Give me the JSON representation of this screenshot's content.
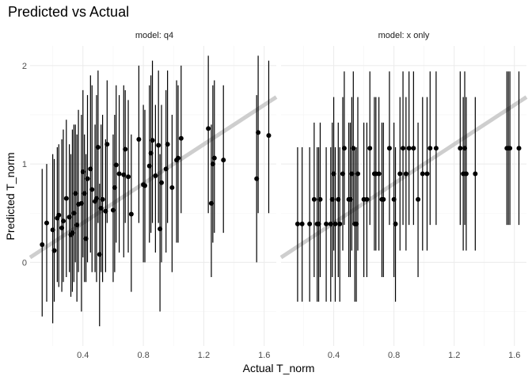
{
  "chart_data": {
    "type": "scatter",
    "title": "Predicted vs Actual",
    "xlabel": "Actual T_norm",
    "ylabel": "Predicted T_norm",
    "xlim": [
      0.05,
      1.68
    ],
    "ylim": [
      -0.85,
      2.2
    ],
    "xticks": [
      0.4,
      0.8,
      1.2,
      1.6
    ],
    "yticks": [
      0,
      1,
      2
    ],
    "grid": true,
    "reference_line": {
      "slope": 1,
      "intercept": 0
    },
    "panels": [
      {
        "name": "model: q4",
        "points": [
          {
            "x": 0.13,
            "y": 0.18,
            "lo": -0.55,
            "hi": 0.95
          },
          {
            "x": 0.16,
            "y": 0.4,
            "lo": -0.4,
            "hi": 1.0
          },
          {
            "x": 0.2,
            "y": 0.33,
            "lo": -0.62,
            "hi": 1.1
          },
          {
            "x": 0.21,
            "y": 0.12,
            "lo": -0.4,
            "hi": 1.05
          },
          {
            "x": 0.23,
            "y": 0.45,
            "lo": -0.2,
            "hi": 1.17
          },
          {
            "x": 0.24,
            "y": 0.48,
            "lo": -0.25,
            "hi": 1.2
          },
          {
            "x": 0.26,
            "y": 0.35,
            "lo": -0.3,
            "hi": 1.25
          },
          {
            "x": 0.27,
            "y": 0.42,
            "lo": -0.2,
            "hi": 1.35
          },
          {
            "x": 0.29,
            "y": 0.65,
            "lo": -0.15,
            "hi": 1.45
          },
          {
            "x": 0.31,
            "y": 0.46,
            "lo": -0.1,
            "hi": 1.2
          },
          {
            "x": 0.32,
            "y": 0.28,
            "lo": -0.35,
            "hi": 1.1
          },
          {
            "x": 0.33,
            "y": 0.3,
            "lo": -0.3,
            "hi": 1.35
          },
          {
            "x": 0.34,
            "y": 0.5,
            "lo": -0.2,
            "hi": 1.4
          },
          {
            "x": 0.35,
            "y": 0.7,
            "lo": 0.0,
            "hi": 1.4
          },
          {
            "x": 0.36,
            "y": 0.38,
            "lo": -0.4,
            "hi": 1.3
          },
          {
            "x": 0.37,
            "y": 0.59,
            "lo": -0.1,
            "hi": 1.55
          },
          {
            "x": 0.39,
            "y": 0.6,
            "lo": -0.5,
            "hi": 1.5
          },
          {
            "x": 0.4,
            "y": 0.92,
            "lo": 0.05,
            "hi": 1.75
          },
          {
            "x": 0.41,
            "y": 0.7,
            "lo": -0.2,
            "hi": 1.3
          },
          {
            "x": 0.42,
            "y": 0.24,
            "lo": -0.2,
            "hi": 1.1
          },
          {
            "x": 0.43,
            "y": 0.85,
            "lo": 0.0,
            "hi": 1.7
          },
          {
            "x": 0.45,
            "y": 0.95,
            "lo": 0.1,
            "hi": 1.9
          },
          {
            "x": 0.46,
            "y": 0.74,
            "lo": -0.1,
            "hi": 1.8
          },
          {
            "x": 0.48,
            "y": 0.62,
            "lo": -0.1,
            "hi": 1.4
          },
          {
            "x": 0.49,
            "y": 0.65,
            "lo": -0.2,
            "hi": 1.7
          },
          {
            "x": 0.5,
            "y": 1.17,
            "lo": 0.4,
            "hi": 1.95
          },
          {
            "x": 0.51,
            "y": 0.08,
            "lo": -0.65,
            "hi": 0.8
          },
          {
            "x": 0.52,
            "y": 0.55,
            "lo": -0.1,
            "hi": 1.4
          },
          {
            "x": 0.53,
            "y": 0.64,
            "lo": -0.2,
            "hi": 1.5
          },
          {
            "x": 0.55,
            "y": 0.52,
            "lo": -0.1,
            "hi": 1.25
          },
          {
            "x": 0.56,
            "y": 1.2,
            "lo": 0.4,
            "hi": 1.85
          },
          {
            "x": 0.6,
            "y": 0.53,
            "lo": -0.2,
            "hi": 1.3
          },
          {
            "x": 0.61,
            "y": 0.76,
            "lo": -0.1,
            "hi": 1.5
          },
          {
            "x": 0.62,
            "y": 0.99,
            "lo": 0.2,
            "hi": 1.8
          },
          {
            "x": 0.64,
            "y": 0.9,
            "lo": 0.1,
            "hi": 1.7
          },
          {
            "x": 0.67,
            "y": 0.89,
            "lo": 0.05,
            "hi": 1.8
          },
          {
            "x": 0.68,
            "y": 1.15,
            "lo": 0.4,
            "hi": 1.75
          },
          {
            "x": 0.7,
            "y": 0.87,
            "lo": 0.1,
            "hi": 1.65
          },
          {
            "x": 0.72,
            "y": 0.49,
            "lo": -0.3,
            "hi": 1.3
          },
          {
            "x": 0.77,
            "y": 1.25,
            "lo": 0.4,
            "hi": 2.0
          },
          {
            "x": 0.8,
            "y": 0.79,
            "lo": 0.0,
            "hi": 1.6
          },
          {
            "x": 0.81,
            "y": 0.78,
            "lo": 0.0,
            "hi": 1.55
          },
          {
            "x": 0.84,
            "y": 0.98,
            "lo": 0.2,
            "hi": 1.8
          },
          {
            "x": 0.85,
            "y": 1.11,
            "lo": 0.3,
            "hi": 1.9
          },
          {
            "x": 0.86,
            "y": 1.24,
            "lo": 0.4,
            "hi": 2.05
          },
          {
            "x": 0.88,
            "y": 0.88,
            "lo": 0.1,
            "hi": 1.6
          },
          {
            "x": 0.9,
            "y": 1.19,
            "lo": 0.4,
            "hi": 1.95
          },
          {
            "x": 0.91,
            "y": 0.34,
            "lo": -0.5,
            "hi": 1.1
          },
          {
            "x": 0.92,
            "y": 0.81,
            "lo": 0.0,
            "hi": 1.6
          },
          {
            "x": 0.95,
            "y": 0.95,
            "lo": 0.1,
            "hi": 1.75
          },
          {
            "x": 0.96,
            "y": 1.2,
            "lo": 0.4,
            "hi": 1.95
          },
          {
            "x": 0.99,
            "y": 0.76,
            "lo": -0.1,
            "hi": 1.5
          },
          {
            "x": 1.02,
            "y": 1.04,
            "lo": 0.2,
            "hi": 1.85
          },
          {
            "x": 1.03,
            "y": 1.06,
            "lo": 0.2,
            "hi": 1.8
          },
          {
            "x": 1.05,
            "y": 1.26,
            "lo": 0.5,
            "hi": 2.0
          },
          {
            "x": 1.23,
            "y": 1.36,
            "lo": 0.5,
            "hi": 2.1
          },
          {
            "x": 1.25,
            "y": 0.6,
            "lo": -0.15,
            "hi": 1.4
          },
          {
            "x": 1.26,
            "y": 1.0,
            "lo": 0.2,
            "hi": 1.8
          },
          {
            "x": 1.27,
            "y": 1.06,
            "lo": 0.3,
            "hi": 1.85
          },
          {
            "x": 1.33,
            "y": 1.04,
            "lo": 0.3,
            "hi": 1.8
          },
          {
            "x": 1.55,
            "y": 0.85,
            "lo": 0.0,
            "hi": 1.7
          },
          {
            "x": 1.56,
            "y": 1.32,
            "lo": 0.5,
            "hi": 2.1
          },
          {
            "x": 1.63,
            "y": 1.29,
            "lo": 0.5,
            "hi": 2.05
          }
        ]
      },
      {
        "name": "model: x only",
        "points": [
          {
            "x": 0.16,
            "y": 0.39,
            "lo": -0.4,
            "hi": 1.17
          },
          {
            "x": 0.19,
            "y": 0.39,
            "lo": -0.4,
            "hi": 1.17
          },
          {
            "x": 0.24,
            "y": 0.39,
            "lo": -0.4,
            "hi": 1.17
          },
          {
            "x": 0.27,
            "y": 0.64,
            "lo": -0.15,
            "hi": 1.42
          },
          {
            "x": 0.29,
            "y": 0.39,
            "lo": -0.4,
            "hi": 1.17
          },
          {
            "x": 0.3,
            "y": 0.39,
            "lo": -0.4,
            "hi": 1.17
          },
          {
            "x": 0.31,
            "y": 0.64,
            "lo": -0.15,
            "hi": 1.42
          },
          {
            "x": 0.35,
            "y": 0.39,
            "lo": -0.4,
            "hi": 1.17
          },
          {
            "x": 0.38,
            "y": 0.39,
            "lo": -0.4,
            "hi": 1.17
          },
          {
            "x": 0.39,
            "y": 0.64,
            "lo": -0.15,
            "hi": 1.42
          },
          {
            "x": 0.4,
            "y": 0.9,
            "lo": 0.12,
            "hi": 1.68
          },
          {
            "x": 0.41,
            "y": 0.39,
            "lo": -0.4,
            "hi": 1.17
          },
          {
            "x": 0.43,
            "y": 0.64,
            "lo": -0.15,
            "hi": 1.42
          },
          {
            "x": 0.44,
            "y": 0.39,
            "lo": -0.4,
            "hi": 1.17
          },
          {
            "x": 0.46,
            "y": 0.9,
            "lo": 0.12,
            "hi": 1.68
          },
          {
            "x": 0.47,
            "y": 1.16,
            "lo": 0.38,
            "hi": 1.94
          },
          {
            "x": 0.5,
            "y": 0.64,
            "lo": -0.15,
            "hi": 1.42
          },
          {
            "x": 0.51,
            "y": 0.64,
            "lo": -0.15,
            "hi": 1.42
          },
          {
            "x": 0.52,
            "y": 0.9,
            "lo": 0.12,
            "hi": 1.68
          },
          {
            "x": 0.53,
            "y": 1.16,
            "lo": 0.38,
            "hi": 1.94
          },
          {
            "x": 0.54,
            "y": 0.39,
            "lo": -0.4,
            "hi": 1.17
          },
          {
            "x": 0.55,
            "y": 0.39,
            "lo": -0.4,
            "hi": 1.17
          },
          {
            "x": 0.56,
            "y": 0.9,
            "lo": 0.12,
            "hi": 1.68
          },
          {
            "x": 0.6,
            "y": 0.64,
            "lo": -0.15,
            "hi": 1.42
          },
          {
            "x": 0.62,
            "y": 0.64,
            "lo": -0.15,
            "hi": 1.42
          },
          {
            "x": 0.64,
            "y": 1.16,
            "lo": 0.38,
            "hi": 1.94
          },
          {
            "x": 0.67,
            "y": 0.9,
            "lo": 0.12,
            "hi": 1.68
          },
          {
            "x": 0.68,
            "y": 0.9,
            "lo": 0.12,
            "hi": 1.68
          },
          {
            "x": 0.7,
            "y": 0.9,
            "lo": 0.12,
            "hi": 1.68
          },
          {
            "x": 0.72,
            "y": 0.64,
            "lo": -0.15,
            "hi": 1.42
          },
          {
            "x": 0.73,
            "y": 0.64,
            "lo": -0.15,
            "hi": 1.42
          },
          {
            "x": 0.77,
            "y": 1.16,
            "lo": 0.38,
            "hi": 1.94
          },
          {
            "x": 0.8,
            "y": 0.64,
            "lo": -0.15,
            "hi": 1.42
          },
          {
            "x": 0.81,
            "y": 0.39,
            "lo": -0.4,
            "hi": 1.17
          },
          {
            "x": 0.84,
            "y": 0.9,
            "lo": 0.12,
            "hi": 1.68
          },
          {
            "x": 0.86,
            "y": 1.16,
            "lo": 0.38,
            "hi": 1.94
          },
          {
            "x": 0.88,
            "y": 0.9,
            "lo": 0.12,
            "hi": 1.68
          },
          {
            "x": 0.9,
            "y": 1.16,
            "lo": 0.38,
            "hi": 1.94
          },
          {
            "x": 0.93,
            "y": 1.16,
            "lo": 0.38,
            "hi": 1.94
          },
          {
            "x": 0.96,
            "y": 0.64,
            "lo": -0.15,
            "hi": 1.42
          },
          {
            "x": 0.99,
            "y": 0.9,
            "lo": 0.12,
            "hi": 1.68
          },
          {
            "x": 1.02,
            "y": 0.9,
            "lo": 0.12,
            "hi": 1.68
          },
          {
            "x": 1.04,
            "y": 1.16,
            "lo": 0.38,
            "hi": 1.94
          },
          {
            "x": 1.08,
            "y": 1.16,
            "lo": 0.38,
            "hi": 1.94
          },
          {
            "x": 1.24,
            "y": 1.16,
            "lo": 0.38,
            "hi": 1.94
          },
          {
            "x": 1.26,
            "y": 0.9,
            "lo": 0.12,
            "hi": 1.68
          },
          {
            "x": 1.27,
            "y": 1.16,
            "lo": 0.38,
            "hi": 1.94
          },
          {
            "x": 1.28,
            "y": 0.9,
            "lo": 0.12,
            "hi": 1.68
          },
          {
            "x": 1.34,
            "y": 0.9,
            "lo": 0.12,
            "hi": 1.68
          },
          {
            "x": 1.55,
            "y": 1.16,
            "lo": 0.38,
            "hi": 1.94
          },
          {
            "x": 1.56,
            "y": 1.16,
            "lo": 0.38,
            "hi": 1.94
          },
          {
            "x": 1.57,
            "y": 1.16,
            "lo": 0.38,
            "hi": 1.94
          },
          {
            "x": 1.63,
            "y": 1.16,
            "lo": 0.38,
            "hi": 1.94
          }
        ]
      }
    ]
  },
  "colors": {
    "points": "#000000",
    "reference_line": "#bdbdbd",
    "grid_major": "#ebebeb",
    "grid_minor": "#f4f4f4",
    "tick_text": "#4d4d4d"
  }
}
